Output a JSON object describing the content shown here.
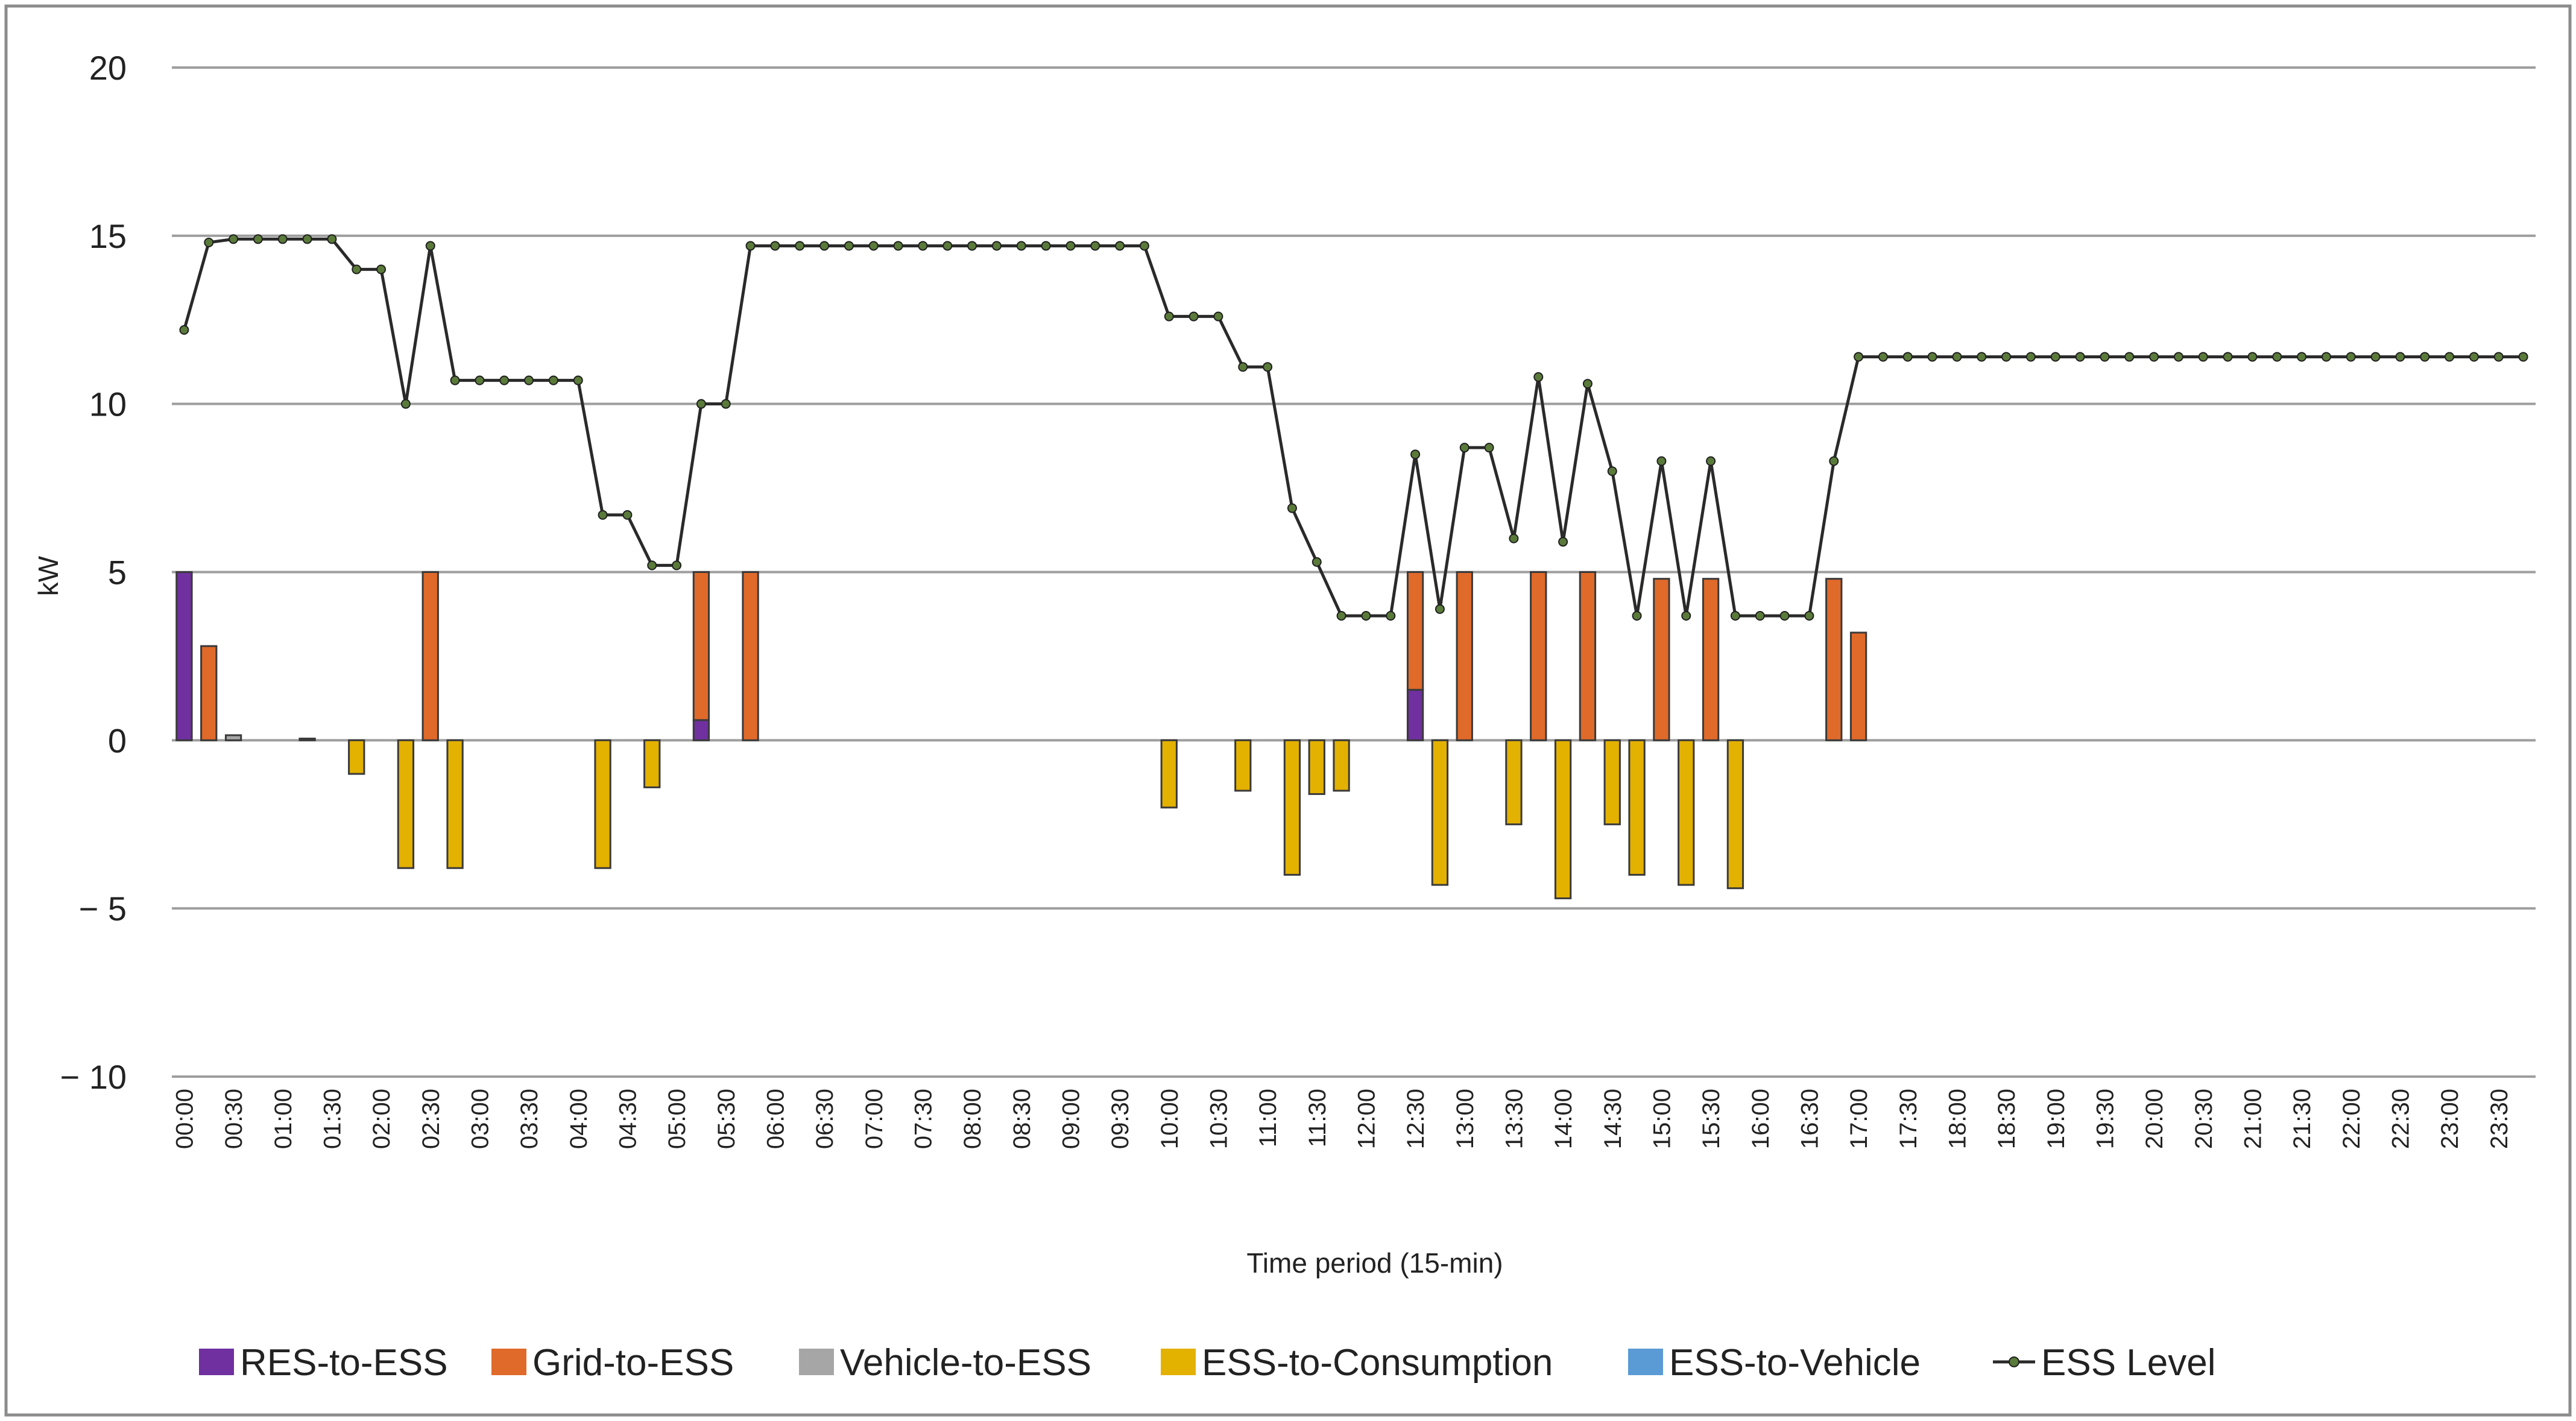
{
  "chart_data": {
    "type": "bar",
    "title": "",
    "xlabel": "Time period (15-min)",
    "ylabel": "kW",
    "ylim": [
      -10,
      20
    ],
    "yticks": [
      20,
      15,
      10,
      5,
      0,
      -5,
      -10
    ],
    "ytick_labels": [
      "20",
      "15",
      "10",
      "5",
      "0",
      "− 5",
      "− 10"
    ],
    "grid": true,
    "legend_position": "bottom",
    "x_tick_labels": [
      "00:00",
      "00:30",
      "01:00",
      "01:30",
      "02:00",
      "02:30",
      "03:00",
      "03:30",
      "04:00",
      "04:30",
      "05:00",
      "05:30",
      "06:00",
      "06:30",
      "07:00",
      "07:30",
      "08:00",
      "08:30",
      "09:00",
      "09:30",
      "10:00",
      "10:30",
      "11:00",
      "11:30",
      "12:00",
      "12:30",
      "13:00",
      "13:30",
      "14:00",
      "14:30",
      "15:00",
      "15:30",
      "16:00",
      "16:30",
      "17:00",
      "17:30",
      "18:00",
      "18:30",
      "19:00",
      "19:30",
      "20:00",
      "20:30",
      "21:00",
      "21:30",
      "22:00",
      "22:30",
      "23:00",
      "23:30"
    ],
    "n_periods": 96,
    "series": [
      {
        "name": "RES-to-ESS",
        "kind": "bar",
        "color": "#7030a0",
        "points": [
          [
            0,
            5.0
          ],
          [
            21,
            0.6
          ],
          [
            50,
            1.5
          ]
        ]
      },
      {
        "name": "Grid-to-ESS",
        "kind": "bar",
        "color": "#e06a2a",
        "points": [
          [
            1,
            2.8
          ],
          [
            10,
            5.0
          ],
          [
            21,
            4.4
          ],
          [
            23,
            5.0
          ],
          [
            50,
            3.5
          ],
          [
            52,
            5.0
          ],
          [
            55,
            5.0
          ],
          [
            57,
            5.0
          ],
          [
            60,
            4.8
          ],
          [
            62,
            4.8
          ],
          [
            67,
            4.8
          ],
          [
            68,
            3.2
          ]
        ]
      },
      {
        "name": "Vehicle-to-ESS",
        "kind": "bar",
        "color": "#a6a6a6",
        "points": [
          [
            2,
            0.15
          ],
          [
            5,
            0.05
          ]
        ]
      },
      {
        "name": "ESS-to-Consumption",
        "kind": "bar",
        "color": "#e3b100",
        "points": [
          [
            7,
            -1.0
          ],
          [
            9,
            -3.8
          ],
          [
            11,
            -3.8
          ],
          [
            17,
            -3.8
          ],
          [
            19,
            -1.4
          ],
          [
            40,
            -2.0
          ],
          [
            43,
            -1.5
          ],
          [
            45,
            -4.0
          ],
          [
            46,
            -1.6
          ],
          [
            47,
            -1.5
          ],
          [
            51,
            -4.3
          ],
          [
            54,
            -2.5
          ],
          [
            56,
            -4.7
          ],
          [
            58,
            -2.5
          ],
          [
            59,
            -4.0
          ],
          [
            61,
            -4.3
          ],
          [
            63,
            -4.4
          ]
        ]
      },
      {
        "name": "ESS-to-Vehicle",
        "kind": "bar",
        "color": "#5b9bd5",
        "points": []
      },
      {
        "name": "ESS Level",
        "kind": "line",
        "color": "#2a2a2a",
        "marker_color": "#5a7a3a",
        "values": [
          12.2,
          14.8,
          14.9,
          14.9,
          14.9,
          14.9,
          14.9,
          14.0,
          14.0,
          10.0,
          14.7,
          10.7,
          10.7,
          10.7,
          10.7,
          10.7,
          10.7,
          6.7,
          6.7,
          5.2,
          5.2,
          10.0,
          10.0,
          14.7,
          14.7,
          14.7,
          14.7,
          14.7,
          14.7,
          14.7,
          14.7,
          14.7,
          14.7,
          14.7,
          14.7,
          14.7,
          14.7,
          14.7,
          14.7,
          14.7,
          12.6,
          12.6,
          12.6,
          11.1,
          11.1,
          6.9,
          5.3,
          3.7,
          3.7,
          3.7,
          8.5,
          3.9,
          8.7,
          8.7,
          6.0,
          10.8,
          5.9,
          10.6,
          8.0,
          3.7,
          8.3,
          3.7,
          8.3,
          3.7,
          3.7,
          3.7,
          3.7,
          8.3,
          11.4,
          11.4,
          11.4,
          11.4,
          11.4,
          11.4,
          11.4,
          11.4,
          11.4,
          11.4,
          11.4,
          11.4,
          11.4,
          11.4,
          11.4,
          11.4,
          11.4,
          11.4,
          11.4,
          11.4,
          11.4,
          11.4,
          11.4,
          11.4,
          11.4,
          11.4,
          11.4,
          11.4
        ]
      }
    ]
  }
}
